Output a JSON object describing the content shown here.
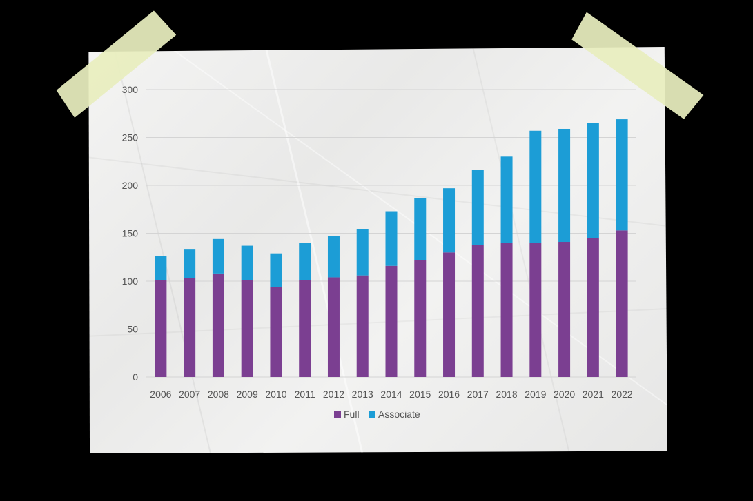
{
  "chart_data": {
    "type": "bar",
    "stacked": true,
    "categories": [
      "2006",
      "2007",
      "2008",
      "2009",
      "2010",
      "2011",
      "2012",
      "2013",
      "2014",
      "2015",
      "2016",
      "2017",
      "2018",
      "2019",
      "2020",
      "2021",
      "2022"
    ],
    "series": [
      {
        "name": "Full",
        "color": "#7b3f91",
        "values": [
          101,
          103,
          108,
          101,
          94,
          101,
          104,
          106,
          116,
          122,
          130,
          138,
          140,
          140,
          141,
          145,
          153
        ]
      },
      {
        "name": "Associate",
        "color": "#1c9dd6",
        "values": [
          25,
          30,
          36,
          36,
          35,
          39,
          43,
          48,
          57,
          65,
          67,
          78,
          90,
          117,
          118,
          120,
          116
        ]
      }
    ],
    "ylim": [
      0,
      300
    ],
    "yticks": [
      0,
      50,
      100,
      150,
      200,
      250,
      300
    ],
    "grid": true,
    "legend_position": "bottom-center",
    "title": "",
    "xlabel": "",
    "ylabel": ""
  },
  "decor": {
    "tape_color": "#e8eebe",
    "paper_color": "#f0f0ef",
    "background_color": "#000000"
  }
}
